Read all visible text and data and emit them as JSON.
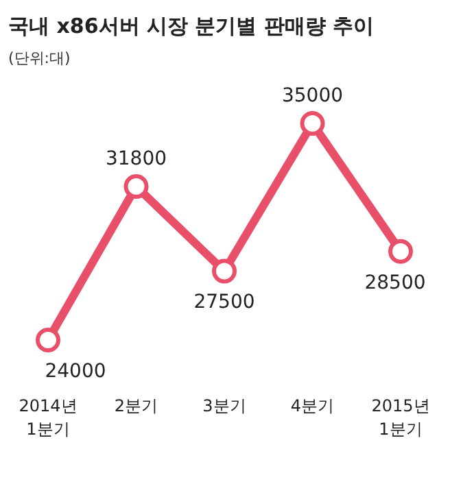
{
  "chart_data": {
    "type": "line",
    "title": "국내 x86서버 시장 분기별 판매량 추이",
    "subtitle": "(단위:대)",
    "categories": [
      "2014년\n1분기",
      "2분기",
      "3분기",
      "4분기",
      "2015년\n1분기"
    ],
    "series": [
      {
        "color": "#e8506a",
        "values": [
          24000,
          31800,
          27500,
          35000,
          28500
        ]
      }
    ],
    "data_labels": true,
    "marker": "circle",
    "line_style": "solid"
  }
}
